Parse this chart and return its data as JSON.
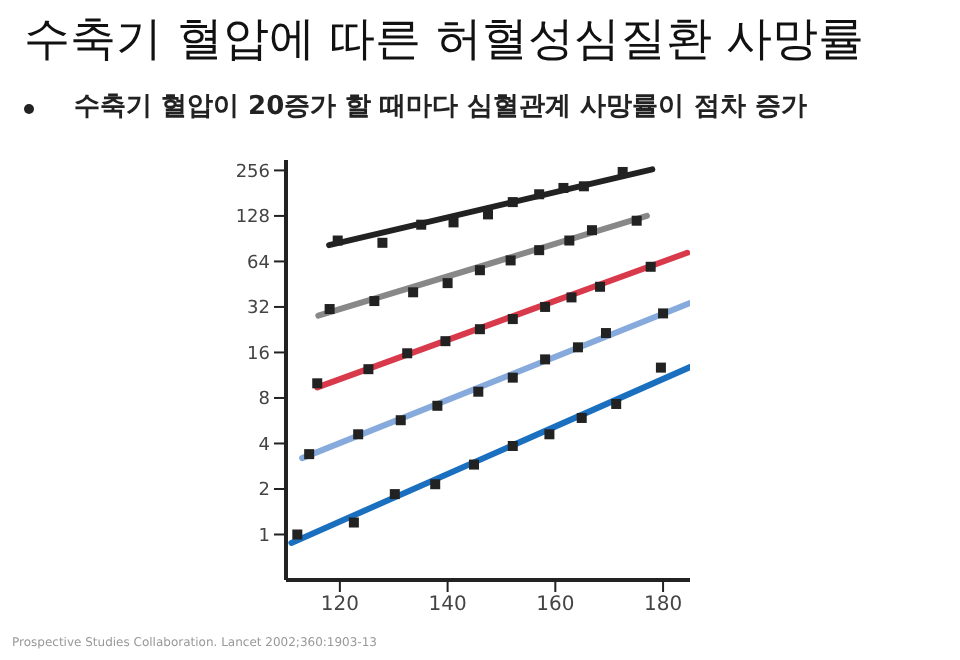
{
  "chart_data": {
    "type": "scatter",
    "title": "수축기 혈압에 따른 허혈성심질환 사망률",
    "subtitle": "수축기 혈압이 20증가 할 때마다 심혈관계 사망률이 점차 증가",
    "annotations": [
      "Prospective Studies Collaboration. Lancet 2002;360:1903-13"
    ],
    "log": "y",
    "marker": "square",
    "grid": false,
    "xlim": [
      110,
      185
    ],
    "xticks": [
      120,
      140,
      160,
      180
    ],
    "ylim": [
      0.5,
      300
    ],
    "yticks": [
      1,
      2,
      4,
      8,
      16,
      32,
      64,
      128,
      256
    ],
    "series": [
      {
        "type": "line",
        "marker": "none",
        "color": "#222222",
        "x": [
          118,
          178
        ],
        "values": [
          82,
          260
        ]
      },
      {
        "type": "line",
        "marker": "none",
        "color": "#888888",
        "x": [
          116,
          177
        ],
        "values": [
          28,
          128
        ]
      },
      {
        "type": "line",
        "marker": "none",
        "color": "#d8394b",
        "x": [
          115.8,
          184.5
        ],
        "values": [
          9.4,
          73
        ]
      },
      {
        "type": "line",
        "marker": "none",
        "color": "#86aadb",
        "x": [
          113,
          185
        ],
        "values": [
          3.2,
          34
        ]
      },
      {
        "type": "line",
        "marker": "none",
        "color": "#1a6fbf",
        "x": [
          111,
          185
        ],
        "values": [
          0.88,
          12.8
        ]
      },
      {
        "color": "#222222",
        "x": [
          119.6,
          127.9,
          135.1,
          141.1,
          147.5,
          152.1,
          157,
          161.5,
          165.3,
          172.5
        ],
        "values": [
          88,
          85,
          112,
          116,
          131,
          158,
          178,
          196,
          201,
          250
        ]
      },
      {
        "color": "#222222",
        "x": [
          118.1,
          126.4,
          133.6,
          140,
          146,
          151.7,
          157,
          162.6,
          166.8,
          175.1
        ],
        "values": [
          31,
          35,
          40,
          46,
          56,
          65,
          76,
          88,
          103,
          119
        ]
      },
      {
        "color": "#222222",
        "x": [
          115.8,
          125.3,
          132.5,
          139.6,
          146,
          152.1,
          158.1,
          163,
          168.3,
          177.7
        ],
        "values": [
          10,
          12.4,
          15.8,
          19,
          22.8,
          26.6,
          32,
          37,
          43.5,
          59
        ]
      },
      {
        "color": "#222222",
        "x": [
          114.3,
          123.4,
          131.3,
          138.1,
          145.7,
          152.1,
          158.1,
          164.2,
          169.4,
          180
        ],
        "values": [
          3.4,
          4.6,
          5.7,
          7.1,
          8.8,
          10.9,
          14.4,
          17.3,
          21.5,
          29
        ]
      },
      {
        "color": "#222222",
        "x": [
          112.1,
          122.6,
          130.2,
          137.7,
          144.9,
          152.1,
          158.9,
          164.9,
          171.3,
          179.6
        ],
        "values": [
          1,
          1.2,
          1.85,
          2.15,
          2.9,
          3.85,
          4.6,
          5.9,
          7.3,
          12.7
        ]
      }
    ]
  }
}
